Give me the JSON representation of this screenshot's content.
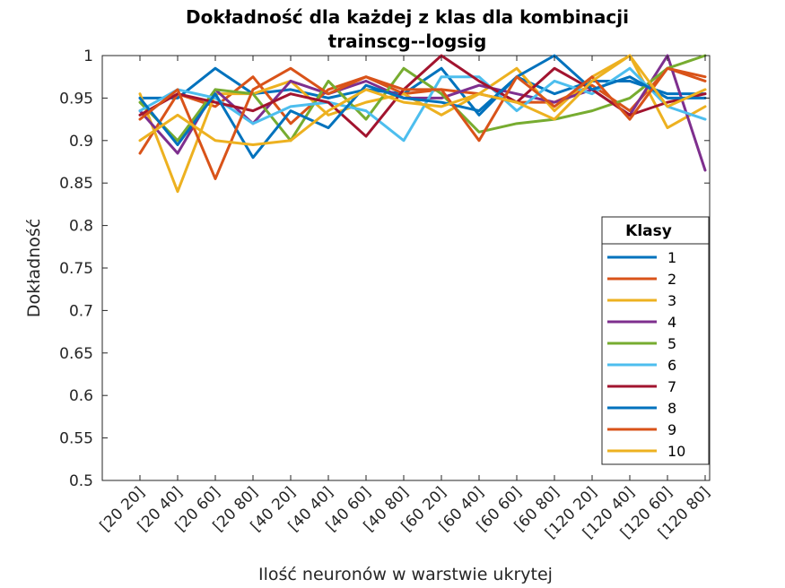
{
  "chart_data": {
    "type": "line",
    "title_lines": [
      "Dokładność dla każdej z klas dla kombinacji",
      "trainscg--logsig"
    ],
    "xlabel": "Ilość neuronów w warstwie ukrytej",
    "ylabel": "Dokładność",
    "categories": [
      "[20 20]",
      "[20 40]",
      "[20 60]",
      "[20 80]",
      "[40 20]",
      "[40 40]",
      "[40 60]",
      "[40 80]",
      "[60 20]",
      "[60 40]",
      "[60 60]",
      "[60 80]",
      "[120 20]",
      "[120 40]",
      "[120 60]",
      "[120 80]"
    ],
    "ylim": [
      0.5,
      1
    ],
    "yticks": [
      "0.5",
      "0.55",
      "0.6",
      "0.65",
      "0.7",
      "0.75",
      "0.8",
      "0.85",
      "0.9",
      "0.95",
      "1"
    ],
    "grid": false,
    "legend": {
      "title": "Klasy",
      "placement": "right"
    },
    "series": [
      {
        "name": "1",
        "color": "#0072BD",
        "values": [
          0.95,
          0.95,
          0.985,
          0.955,
          0.96,
          0.95,
          0.96,
          0.955,
          0.985,
          0.93,
          0.975,
          0.955,
          0.97,
          0.97,
          0.955,
          0.955
        ]
      },
      {
        "name": "2",
        "color": "#D95319",
        "values": [
          0.885,
          0.955,
          0.94,
          0.975,
          0.92,
          0.96,
          0.975,
          0.955,
          0.96,
          0.955,
          0.945,
          0.945,
          0.965,
          0.935,
          0.985,
          0.97
        ]
      },
      {
        "name": "3",
        "color": "#EDB120",
        "values": [
          0.955,
          0.84,
          0.955,
          0.955,
          0.97,
          0.93,
          0.945,
          0.955,
          0.93,
          0.955,
          0.985,
          0.935,
          0.975,
          1.0,
          0.915,
          0.94
        ]
      },
      {
        "name": "4",
        "color": "#7E2F8E",
        "values": [
          0.935,
          0.885,
          0.96,
          0.92,
          0.97,
          0.955,
          0.97,
          0.95,
          0.95,
          0.965,
          0.955,
          0.945,
          0.96,
          0.93,
          1.0,
          0.865
        ]
      },
      {
        "name": "5",
        "color": "#77AC30",
        "values": [
          0.945,
          0.9,
          0.96,
          0.955,
          0.9,
          0.97,
          0.925,
          0.985,
          0.955,
          0.91,
          0.92,
          0.925,
          0.935,
          0.95,
          0.985,
          1.0
        ]
      },
      {
        "name": "6",
        "color": "#4DBEEE",
        "values": [
          0.935,
          0.96,
          0.95,
          0.92,
          0.94,
          0.945,
          0.935,
          0.9,
          0.975,
          0.975,
          0.935,
          0.97,
          0.955,
          0.985,
          0.94,
          0.925
        ]
      },
      {
        "name": "7",
        "color": "#A2142F",
        "values": [
          0.93,
          0.955,
          0.945,
          0.935,
          0.955,
          0.945,
          0.905,
          0.96,
          1.0,
          0.97,
          0.945,
          0.985,
          0.96,
          0.93,
          0.945,
          0.955
        ]
      },
      {
        "name": "8",
        "color": "#0072BD",
        "values": [
          0.95,
          0.895,
          0.955,
          0.88,
          0.935,
          0.915,
          0.965,
          0.95,
          0.945,
          0.935,
          0.975,
          1.0,
          0.96,
          0.975,
          0.95,
          0.95
        ]
      },
      {
        "name": "9",
        "color": "#D95319",
        "values": [
          0.925,
          0.96,
          0.855,
          0.96,
          0.985,
          0.955,
          0.975,
          0.96,
          0.96,
          0.9,
          0.975,
          0.94,
          0.975,
          0.925,
          0.985,
          0.975
        ]
      },
      {
        "name": "10",
        "color": "#EDB120",
        "values": [
          0.9,
          0.93,
          0.9,
          0.895,
          0.9,
          0.935,
          0.96,
          0.945,
          0.94,
          0.955,
          0.945,
          0.925,
          0.97,
          1.0,
          0.94,
          0.96
        ]
      }
    ]
  }
}
